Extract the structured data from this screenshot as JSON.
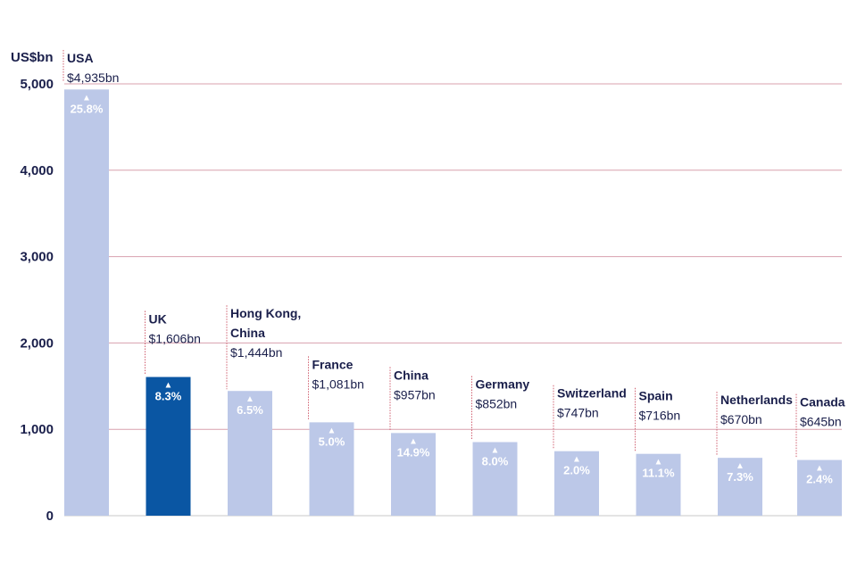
{
  "chart_data": {
    "type": "bar",
    "ylabel": "US$bn",
    "ylim": [
      0,
      5000
    ],
    "yticks": [
      0,
      1000,
      2000,
      3000,
      4000,
      5000
    ],
    "ytick_labels": [
      "0",
      "1,000",
      "2,000",
      "3,000",
      "4,000",
      "5,000"
    ],
    "grid": true,
    "categories": [
      {
        "name_lines": [
          "USA"
        ],
        "value": 4935,
        "value_label": "$4,935bn",
        "change_label": "25.8%",
        "highlight": false
      },
      {
        "name_lines": [
          "UK"
        ],
        "value": 1606,
        "value_label": "$1,606bn",
        "change_label": "8.3%",
        "highlight": true
      },
      {
        "name_lines": [
          "Hong Kong,",
          "China"
        ],
        "value": 1444,
        "value_label": "$1,444bn",
        "change_label": "6.5%",
        "highlight": false
      },
      {
        "name_lines": [
          "France"
        ],
        "value": 1081,
        "value_label": "$1,081bn",
        "change_label": "5.0%",
        "highlight": false
      },
      {
        "name_lines": [
          "China"
        ],
        "value": 957,
        "value_label": "$957bn",
        "change_label": "14.9%",
        "highlight": false
      },
      {
        "name_lines": [
          "Germany"
        ],
        "value": 852,
        "value_label": "$852bn",
        "change_label": "8.0%",
        "highlight": false
      },
      {
        "name_lines": [
          "Switzerland"
        ],
        "value": 747,
        "value_label": "$747bn",
        "change_label": "2.0%",
        "highlight": false
      },
      {
        "name_lines": [
          "Spain"
        ],
        "value": 716,
        "value_label": "$716bn",
        "change_label": "11.1%",
        "highlight": false
      },
      {
        "name_lines": [
          "Netherlands"
        ],
        "value": 670,
        "value_label": "$670bn",
        "change_label": "7.3%",
        "highlight": false
      },
      {
        "name_lines": [
          "Canada"
        ],
        "value": 645,
        "value_label": "$645bn",
        "change_label": "2.4%",
        "highlight": false
      }
    ],
    "change_marker": "▲",
    "colors": {
      "bar": "#bcc8e8",
      "highlight_bar": "#0a56a3",
      "grid": "#d8a0ae",
      "axis": "#c9c9c9",
      "text": "#1a1f4b",
      "leader": "#d06070"
    }
  }
}
